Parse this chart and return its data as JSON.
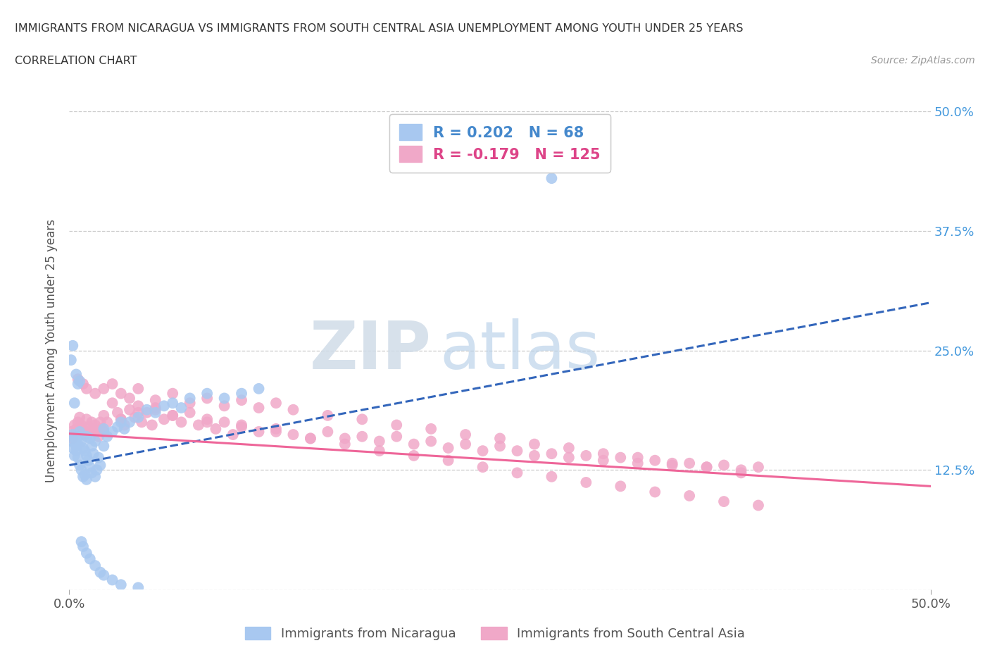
{
  "title_line1": "IMMIGRANTS FROM NICARAGUA VS IMMIGRANTS FROM SOUTH CENTRAL ASIA UNEMPLOYMENT AMONG YOUTH UNDER 25 YEARS",
  "title_line2": "CORRELATION CHART",
  "source": "Source: ZipAtlas.com",
  "ylabel": "Unemployment Among Youth under 25 years",
  "xlim": [
    0.0,
    0.5
  ],
  "ylim": [
    0.0,
    0.5
  ],
  "legend_label1": "Immigrants from Nicaragua",
  "legend_label2": "Immigrants from South Central Asia",
  "R1": 0.202,
  "N1": 68,
  "R2": -0.179,
  "N2": 125,
  "color_blue": "#a8c8f0",
  "color_pink": "#f0a8c8",
  "color_blue_text": "#4488cc",
  "color_pink_text": "#dd4488",
  "color_blue_line": "#3366bb",
  "color_pink_line": "#ee6699",
  "watermark_zip": "ZIP",
  "watermark_atlas": "atlas",
  "blue_x": [
    0.001,
    0.002,
    0.002,
    0.003,
    0.003,
    0.004,
    0.004,
    0.005,
    0.005,
    0.005,
    0.006,
    0.006,
    0.007,
    0.007,
    0.008,
    0.008,
    0.009,
    0.009,
    0.01,
    0.01,
    0.01,
    0.011,
    0.012,
    0.012,
    0.013,
    0.013,
    0.014,
    0.015,
    0.015,
    0.016,
    0.017,
    0.018,
    0.02,
    0.02,
    0.022,
    0.025,
    0.028,
    0.03,
    0.032,
    0.035,
    0.04,
    0.045,
    0.05,
    0.055,
    0.06,
    0.065,
    0.07,
    0.08,
    0.09,
    0.1,
    0.11,
    0.001,
    0.002,
    0.003,
    0.004,
    0.005,
    0.006,
    0.007,
    0.008,
    0.01,
    0.012,
    0.015,
    0.018,
    0.02,
    0.025,
    0.03,
    0.04,
    0.28
  ],
  "blue_y": [
    0.155,
    0.148,
    0.162,
    0.14,
    0.158,
    0.15,
    0.145,
    0.138,
    0.16,
    0.152,
    0.13,
    0.165,
    0.125,
    0.155,
    0.118,
    0.148,
    0.12,
    0.145,
    0.115,
    0.14,
    0.16,
    0.135,
    0.128,
    0.158,
    0.122,
    0.15,
    0.142,
    0.118,
    0.155,
    0.125,
    0.138,
    0.13,
    0.15,
    0.168,
    0.16,
    0.165,
    0.17,
    0.175,
    0.168,
    0.175,
    0.18,
    0.188,
    0.185,
    0.192,
    0.195,
    0.19,
    0.2,
    0.205,
    0.2,
    0.205,
    0.21,
    0.24,
    0.255,
    0.195,
    0.225,
    0.215,
    0.218,
    0.05,
    0.045,
    0.038,
    0.032,
    0.025,
    0.018,
    0.015,
    0.01,
    0.005,
    0.002,
    0.43
  ],
  "pink_x": [
    0.001,
    0.002,
    0.003,
    0.004,
    0.005,
    0.006,
    0.007,
    0.008,
    0.009,
    0.01,
    0.011,
    0.012,
    0.013,
    0.014,
    0.015,
    0.016,
    0.017,
    0.018,
    0.019,
    0.02,
    0.022,
    0.025,
    0.028,
    0.03,
    0.032,
    0.035,
    0.038,
    0.04,
    0.042,
    0.045,
    0.048,
    0.05,
    0.055,
    0.06,
    0.065,
    0.07,
    0.075,
    0.08,
    0.085,
    0.09,
    0.095,
    0.1,
    0.11,
    0.12,
    0.13,
    0.14,
    0.15,
    0.16,
    0.17,
    0.18,
    0.19,
    0.2,
    0.21,
    0.22,
    0.23,
    0.24,
    0.25,
    0.26,
    0.27,
    0.28,
    0.29,
    0.3,
    0.31,
    0.32,
    0.33,
    0.34,
    0.35,
    0.36,
    0.37,
    0.38,
    0.39,
    0.4,
    0.005,
    0.008,
    0.01,
    0.015,
    0.02,
    0.025,
    0.03,
    0.035,
    0.04,
    0.05,
    0.06,
    0.07,
    0.08,
    0.09,
    0.1,
    0.11,
    0.12,
    0.13,
    0.15,
    0.17,
    0.19,
    0.21,
    0.23,
    0.25,
    0.27,
    0.29,
    0.31,
    0.33,
    0.35,
    0.37,
    0.39,
    0.02,
    0.03,
    0.04,
    0.05,
    0.06,
    0.08,
    0.1,
    0.12,
    0.14,
    0.16,
    0.18,
    0.2,
    0.22,
    0.24,
    0.26,
    0.28,
    0.3,
    0.32,
    0.34,
    0.36,
    0.38,
    0.4
  ],
  "pink_y": [
    0.165,
    0.158,
    0.172,
    0.168,
    0.175,
    0.18,
    0.172,
    0.168,
    0.162,
    0.178,
    0.17,
    0.165,
    0.175,
    0.168,
    0.172,
    0.165,
    0.16,
    0.175,
    0.168,
    0.182,
    0.175,
    0.195,
    0.185,
    0.178,
    0.172,
    0.188,
    0.18,
    0.192,
    0.175,
    0.185,
    0.172,
    0.19,
    0.178,
    0.182,
    0.175,
    0.185,
    0.172,
    0.178,
    0.168,
    0.175,
    0.162,
    0.172,
    0.165,
    0.168,
    0.162,
    0.158,
    0.165,
    0.158,
    0.16,
    0.155,
    0.16,
    0.152,
    0.155,
    0.148,
    0.152,
    0.145,
    0.15,
    0.145,
    0.14,
    0.142,
    0.138,
    0.14,
    0.135,
    0.138,
    0.132,
    0.135,
    0.13,
    0.132,
    0.128,
    0.13,
    0.125,
    0.128,
    0.22,
    0.215,
    0.21,
    0.205,
    0.21,
    0.215,
    0.205,
    0.2,
    0.21,
    0.198,
    0.205,
    0.195,
    0.2,
    0.192,
    0.198,
    0.19,
    0.195,
    0.188,
    0.182,
    0.178,
    0.172,
    0.168,
    0.162,
    0.158,
    0.152,
    0.148,
    0.142,
    0.138,
    0.132,
    0.128,
    0.122,
    0.165,
    0.178,
    0.185,
    0.188,
    0.182,
    0.175,
    0.17,
    0.165,
    0.158,
    0.152,
    0.145,
    0.14,
    0.135,
    0.128,
    0.122,
    0.118,
    0.112,
    0.108,
    0.102,
    0.098,
    0.092,
    0.088
  ]
}
